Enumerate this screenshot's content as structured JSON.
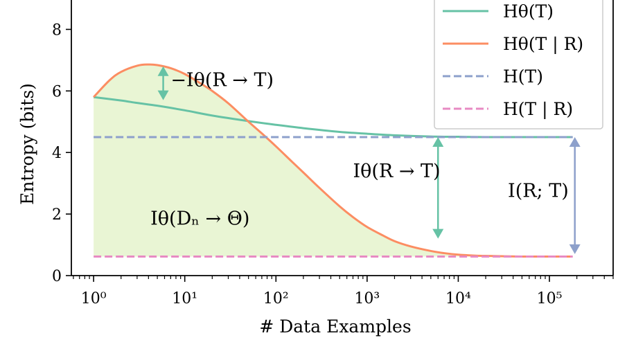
{
  "chart_data": {
    "type": "line",
    "xlabel": "# Data Examples",
    "ylabel": "Entropy (bits)",
    "x_scale": "log",
    "xlim": [
      0.57,
      500000
    ],
    "ylim": [
      0,
      9.0
    ],
    "x_ticks": [
      {
        "value": 1,
        "label": "10⁰"
      },
      {
        "value": 10,
        "label": "10¹"
      },
      {
        "value": 100,
        "label": "10²"
      },
      {
        "value": 1000,
        "label": "10³"
      },
      {
        "value": 10000,
        "label": "10⁴"
      },
      {
        "value": 100000,
        "label": "10⁵"
      }
    ],
    "y_ticks": [
      {
        "value": 0,
        "label": "0"
      },
      {
        "value": 2,
        "label": "2"
      },
      {
        "value": 4,
        "label": "4"
      },
      {
        "value": 6,
        "label": "6"
      },
      {
        "value": 8,
        "label": "8"
      }
    ],
    "grid": false,
    "legend_position": "top-right",
    "series": [
      {
        "name": "Hθ(T)",
        "color": "#66c2a5",
        "style": "solid",
        "x": [
          1,
          2,
          3,
          5,
          10,
          20,
          50,
          100,
          200,
          500,
          1000,
          2000,
          5000,
          10000,
          20000,
          50000,
          100000,
          180000
        ],
        "y": [
          5.8,
          5.69,
          5.61,
          5.52,
          5.37,
          5.2,
          5.02,
          4.9,
          4.79,
          4.67,
          4.61,
          4.56,
          4.52,
          4.51,
          4.5,
          4.5,
          4.5,
          4.5
        ]
      },
      {
        "name": "Hθ(T | R)",
        "color": "#fc8d62",
        "style": "solid",
        "x": [
          1,
          1.5,
          2,
          3,
          4,
          5,
          7,
          10,
          15,
          20,
          30,
          50,
          70,
          100,
          150,
          200,
          300,
          500,
          700,
          1000,
          1500,
          2000,
          3000,
          5000,
          7000,
          10000,
          15000,
          20000,
          30000,
          50000,
          100000,
          180000
        ],
        "y": [
          5.8,
          6.35,
          6.62,
          6.82,
          6.86,
          6.84,
          6.74,
          6.55,
          6.24,
          6.0,
          5.6,
          5.0,
          4.62,
          4.2,
          3.7,
          3.35,
          2.85,
          2.25,
          1.9,
          1.58,
          1.3,
          1.12,
          0.95,
          0.8,
          0.73,
          0.68,
          0.65,
          0.64,
          0.63,
          0.62,
          0.62,
          0.62
        ]
      },
      {
        "name": "H(T)",
        "color": "#8da0cb",
        "style": "dashed",
        "x": [
          1,
          180000
        ],
        "y": [
          4.5,
          4.5
        ]
      },
      {
        "name": "H(T | R)",
        "color": "#e78ac3",
        "style": "dashed",
        "x": [
          1,
          180000
        ],
        "y": [
          0.62,
          0.62
        ]
      }
    ],
    "fill": {
      "color": "#a6d854",
      "opacity": 0.25,
      "between": [
        "Hθ(T | R)",
        "H(T | R)"
      ]
    },
    "annotations": [
      {
        "id": "neg-mi",
        "text": "−Iθ(R → T)",
        "arrow_x": 5.8,
        "arrow_from": 6.8,
        "arrow_to": 5.7,
        "color": "#66c2a5",
        "text_x": 7.0,
        "text_y": 6.15
      },
      {
        "id": "mi-theta",
        "text": "Iθ(R → T)",
        "arrow_x": 6000,
        "arrow_from": 4.5,
        "arrow_to": 1.2,
        "color": "#66c2a5",
        "text_x": 700,
        "text_y": 3.2
      },
      {
        "id": "mi-true",
        "text": "I(R; T)",
        "arrow_x": 190000,
        "arrow_from": 4.5,
        "arrow_to": 0.7,
        "color": "#8da0cb",
        "text_x": 35000,
        "text_y": 2.55
      },
      {
        "id": "data-info",
        "text": "Iθ(Dₙ → Θ)",
        "arrow_x": null,
        "arrow_from": null,
        "arrow_to": null,
        "color": "#000000",
        "text_x": 4.2,
        "text_y": 1.65
      }
    ]
  }
}
